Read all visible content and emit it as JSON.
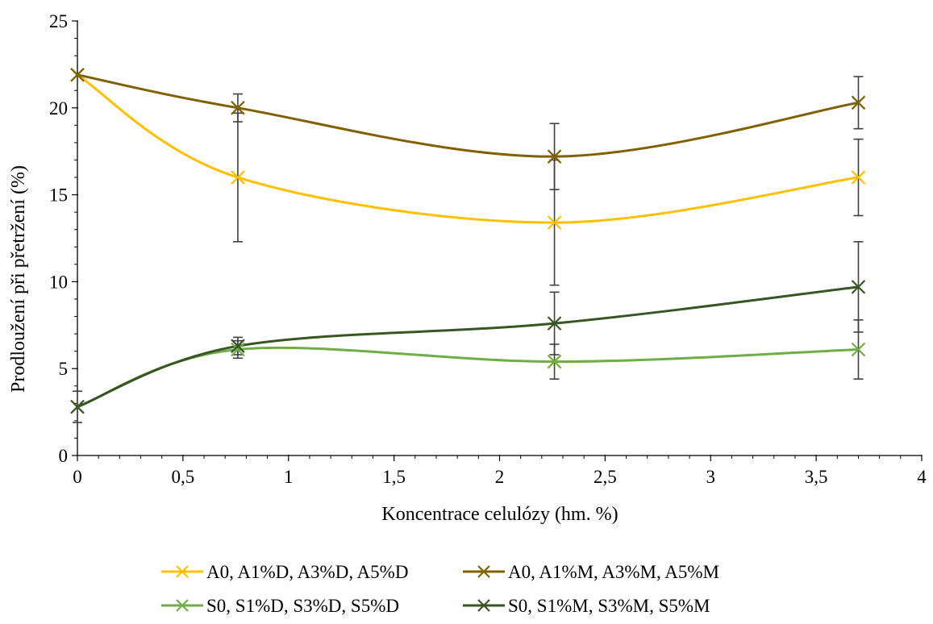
{
  "chart_data": {
    "type": "line",
    "title": "",
    "xlabel": "Koncentrace celulózy (hm. %)",
    "ylabel": "Prodloužení při přetržení (%)",
    "xlim": [
      0,
      4
    ],
    "ylim": [
      0,
      25
    ],
    "x_ticks": [
      0,
      0.5,
      1,
      1.5,
      2,
      2.5,
      3,
      3.5,
      4
    ],
    "x_tick_labels": [
      "0",
      "0,5",
      "1",
      "1,5",
      "2",
      "2,5",
      "3",
      "3,5",
      "4"
    ],
    "y_ticks": [
      0,
      5,
      10,
      15,
      20,
      25
    ],
    "y_tick_labels": [
      "0",
      "5",
      "10",
      "15",
      "20",
      "25"
    ],
    "grid": false,
    "smooth": true,
    "marker": "x",
    "legend_position": "bottom",
    "series": [
      {
        "name": "A0, A1%D, A3%D, A5%D",
        "color": "#FFC000",
        "x": [
          0,
          0.76,
          2.26,
          3.7
        ],
        "y": [
          21.9,
          16.0,
          13.4,
          16.0
        ],
        "err": [
          0,
          3.7,
          3.6,
          2.2
        ]
      },
      {
        "name": "A0, A1%M, A3%M, A5%M",
        "color": "#806000",
        "x": [
          0,
          0.76,
          2.26,
          3.7
        ],
        "y": [
          21.9,
          20.0,
          17.2,
          20.3
        ],
        "err": [
          0,
          0.8,
          1.9,
          1.5
        ]
      },
      {
        "name": "S0, S1%D, S3%D, S5%D",
        "color": "#70AD47",
        "x": [
          0,
          0.76,
          2.26,
          3.7
        ],
        "y": [
          2.8,
          6.1,
          5.4,
          6.1
        ],
        "err": [
          0,
          0.5,
          1.0,
          1.7
        ]
      },
      {
        "name": "S0, S1%M, S3%M, S5%M",
        "color": "#375623",
        "x": [
          0,
          0.76,
          2.26,
          3.7
        ],
        "y": [
          2.8,
          6.3,
          7.6,
          9.7
        ],
        "err": [
          0.9,
          0.5,
          1.8,
          2.6
        ]
      }
    ]
  }
}
